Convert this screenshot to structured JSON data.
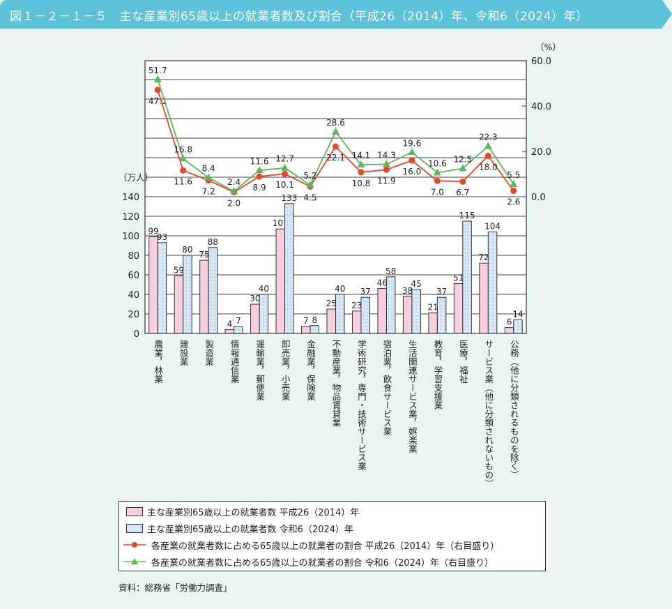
{
  "title": "図１－２－１－５　主な産業別65歳以上の就業者数及び割合（平成26（2014）年、令和6（2024）年）",
  "source": "資料：総務省「労働力調査」",
  "colors": {
    "header": "#5bc2d9",
    "bar2014": "#f7cde0",
    "bar2024": "#d8e7f5",
    "line2014": "#e8452b",
    "line2024": "#5cb85c"
  },
  "chart_data": {
    "type": "bar+line",
    "left_axis": {
      "label": "（万人）",
      "range": [
        0,
        140
      ],
      "ticks": [
        0,
        20,
        40,
        60,
        80,
        100,
        120,
        140
      ]
    },
    "right_axis": {
      "label": "（%）",
      "range": [
        0,
        60
      ],
      "ticks": [
        "0.0",
        "20.0",
        "40.0",
        "60.0"
      ]
    },
    "grid": true,
    "legend_placement": "bottom",
    "categories": [
      "農業，林業",
      "建設業",
      "製造業",
      "情報通信業",
      "運輸業，郵便業",
      "卸売業，小売業",
      "金融業，保険業",
      "不動産業，物品賃貸業",
      "学術研究，専門・技術サービス業",
      "宿泊業，飲食サービス業",
      "生活関連サービス業，娯楽業",
      "教育，学習支援業",
      "医療，福祉",
      "サービス業（他に分類されないもの）",
      "公務（他に分類されるものを除く）"
    ],
    "series": [
      {
        "name": "主な産業別65歳以上の就業者数 平成26（2014）年",
        "type": "bar",
        "axis": "left",
        "values": [
          99,
          59,
          75,
          4,
          30,
          107,
          7,
          25,
          23,
          46,
          38,
          21,
          51,
          72,
          6
        ]
      },
      {
        "name": "主な産業別65歳以上の就業者数 令和6（2024）年",
        "type": "bar",
        "axis": "left",
        "values": [
          93,
          80,
          88,
          7,
          40,
          133,
          8,
          40,
          37,
          58,
          45,
          37,
          115,
          104,
          14
        ]
      },
      {
        "name": "各産業の就業者数に占める65歳以上の就業者の割合 平成26（2014）年（右目盛り）",
        "type": "line",
        "axis": "right",
        "values": [
          47.1,
          11.6,
          7.2,
          2.0,
          8.9,
          10.1,
          4.5,
          22.1,
          10.8,
          11.9,
          16.0,
          7.0,
          6.7,
          18.0,
          2.6
        ]
      },
      {
        "name": "各産業の就業者数に占める65歳以上の就業者の割合 令和6（2024）年（右目盛り）",
        "type": "line",
        "axis": "right",
        "values": [
          51.7,
          16.8,
          8.4,
          2.4,
          11.6,
          12.7,
          5.2,
          28.6,
          14.1,
          14.3,
          19.6,
          10.6,
          12.5,
          22.3,
          5.5
        ]
      }
    ]
  }
}
